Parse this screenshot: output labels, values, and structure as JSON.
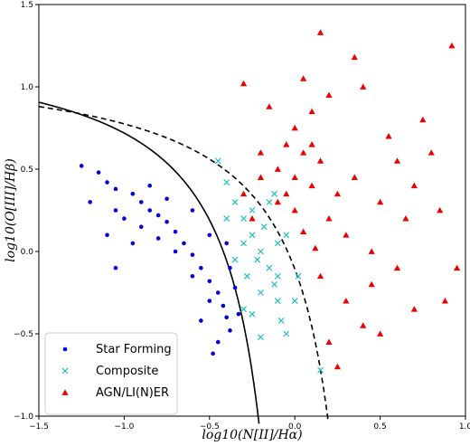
{
  "chart_data": {
    "type": "scatter",
    "title": "",
    "xlabel": "log10(N[II]/Hα)",
    "ylabel": "log10(O[III]/Hβ)",
    "xlim": [
      -1.5,
      1.0
    ],
    "ylim": [
      -1.0,
      1.5
    ],
    "x_ticks": [
      "−1.5",
      "−1.0",
      "−0.5",
      "0.0",
      "0.5",
      "1.0"
    ],
    "y_ticks": [
      "−1.0",
      "−0.5",
      "0.0",
      "0.5",
      "1.0",
      "1.5"
    ],
    "grid": false,
    "legend_position": "bottom-left",
    "series": [
      {
        "name": "Star Forming",
        "marker": "circle",
        "color": "#0000dd",
        "points": [
          [
            -1.25,
            0.52
          ],
          [
            -1.15,
            0.48
          ],
          [
            -1.1,
            0.42
          ],
          [
            -1.05,
            0.38
          ],
          [
            -1.2,
            0.3
          ],
          [
            -0.95,
            0.35
          ],
          [
            -0.9,
            0.3
          ],
          [
            -0.85,
            0.25
          ],
          [
            -0.8,
            0.22
          ],
          [
            -0.75,
            0.18
          ],
          [
            -0.7,
            0.12
          ],
          [
            -0.65,
            0.05
          ],
          [
            -0.6,
            -0.02
          ],
          [
            -0.55,
            -0.1
          ],
          [
            -0.5,
            -0.18
          ],
          [
            -0.45,
            -0.25
          ],
          [
            -0.42,
            -0.33
          ],
          [
            -0.4,
            -0.4
          ],
          [
            -0.38,
            -0.48
          ],
          [
            -0.45,
            -0.55
          ],
          [
            -1.0,
            0.2
          ],
          [
            -0.9,
            0.15
          ],
          [
            -0.8,
            0.08
          ],
          [
            -0.7,
            0.0
          ],
          [
            -0.6,
            -0.15
          ],
          [
            -0.5,
            -0.3
          ],
          [
            -0.55,
            -0.42
          ],
          [
            -0.48,
            -0.62
          ],
          [
            -0.35,
            -0.22
          ],
          [
            -0.4,
            0.05
          ],
          [
            -0.6,
            0.25
          ],
          [
            -0.75,
            0.32
          ],
          [
            -0.85,
            0.4
          ],
          [
            -1.1,
            0.1
          ],
          [
            -1.05,
            -0.1
          ],
          [
            -0.95,
            0.05
          ],
          [
            -1.05,
            0.25
          ],
          [
            -0.5,
            0.1
          ],
          [
            -0.38,
            -0.1
          ],
          [
            -0.33,
            -0.38
          ]
        ]
      },
      {
        "name": "Composite",
        "marker": "x",
        "color": "#20c0c0",
        "points": [
          [
            -0.45,
            0.55
          ],
          [
            -0.4,
            0.42
          ],
          [
            -0.35,
            0.3
          ],
          [
            -0.3,
            0.2
          ],
          [
            -0.25,
            0.1
          ],
          [
            -0.2,
            0.0
          ],
          [
            -0.15,
            -0.1
          ],
          [
            -0.12,
            -0.2
          ],
          [
            -0.1,
            -0.3
          ],
          [
            -0.08,
            -0.42
          ],
          [
            -0.2,
            -0.52
          ],
          [
            -0.3,
            -0.35
          ],
          [
            -0.28,
            -0.15
          ],
          [
            -0.25,
            0.25
          ],
          [
            -0.18,
            0.15
          ],
          [
            -0.22,
            -0.05
          ],
          [
            -0.1,
            0.05
          ],
          [
            -0.05,
            -0.5
          ],
          [
            0.0,
            -0.3
          ],
          [
            0.15,
            -0.72
          ],
          [
            -0.15,
            0.3
          ],
          [
            -0.3,
            0.05
          ],
          [
            -0.35,
            -0.05
          ],
          [
            -0.2,
            -0.25
          ],
          [
            -0.1,
            -0.15
          ],
          [
            -0.05,
            0.1
          ],
          [
            -0.4,
            0.2
          ],
          [
            -0.12,
            0.35
          ],
          [
            -0.25,
            -0.38
          ],
          [
            0.02,
            -0.15
          ]
        ]
      },
      {
        "name": "AGN/LI(N)ER",
        "marker": "triangle",
        "color": "#ee0000",
        "points": [
          [
            0.15,
            1.33
          ],
          [
            0.35,
            1.18
          ],
          [
            0.92,
            1.25
          ],
          [
            -0.3,
            1.02
          ],
          [
            0.05,
            1.05
          ],
          [
            0.4,
            1.0
          ],
          [
            0.2,
            0.95
          ],
          [
            -0.15,
            0.88
          ],
          [
            0.1,
            0.85
          ],
          [
            0.0,
            0.75
          ],
          [
            -0.05,
            0.65
          ],
          [
            0.05,
            0.6
          ],
          [
            0.15,
            0.55
          ],
          [
            -0.1,
            0.5
          ],
          [
            0.0,
            0.45
          ],
          [
            0.1,
            0.4
          ],
          [
            -0.2,
            0.45
          ],
          [
            -0.3,
            0.35
          ],
          [
            -0.1,
            0.3
          ],
          [
            0.0,
            0.25
          ],
          [
            0.2,
            0.2
          ],
          [
            0.3,
            0.1
          ],
          [
            0.45,
            0.0
          ],
          [
            0.6,
            -0.1
          ],
          [
            0.5,
            0.3
          ],
          [
            0.7,
            0.4
          ],
          [
            0.8,
            0.6
          ],
          [
            0.85,
            0.25
          ],
          [
            0.95,
            -0.1
          ],
          [
            0.88,
            -0.3
          ],
          [
            0.7,
            -0.35
          ],
          [
            0.5,
            -0.5
          ],
          [
            0.45,
            -0.2
          ],
          [
            0.3,
            -0.3
          ],
          [
            0.2,
            -0.55
          ],
          [
            0.25,
            -0.7
          ],
          [
            0.1,
            0.65
          ],
          [
            -0.05,
            0.35
          ],
          [
            0.05,
            0.12
          ],
          [
            0.35,
            0.45
          ],
          [
            0.55,
            0.7
          ],
          [
            0.6,
            0.55
          ],
          [
            0.75,
            0.8
          ],
          [
            -0.2,
            0.6
          ],
          [
            0.12,
            0.02
          ],
          [
            0.4,
            -0.45
          ],
          [
            0.65,
            0.2
          ],
          [
            0.25,
            0.35
          ],
          [
            -0.25,
            0.2
          ],
          [
            0.15,
            -0.15
          ]
        ]
      }
    ],
    "curves": [
      {
        "label": "solid-curve",
        "style": "solid",
        "color": "#000000"
      },
      {
        "label": "dashed-curve",
        "style": "dashed",
        "color": "#000000"
      }
    ]
  }
}
